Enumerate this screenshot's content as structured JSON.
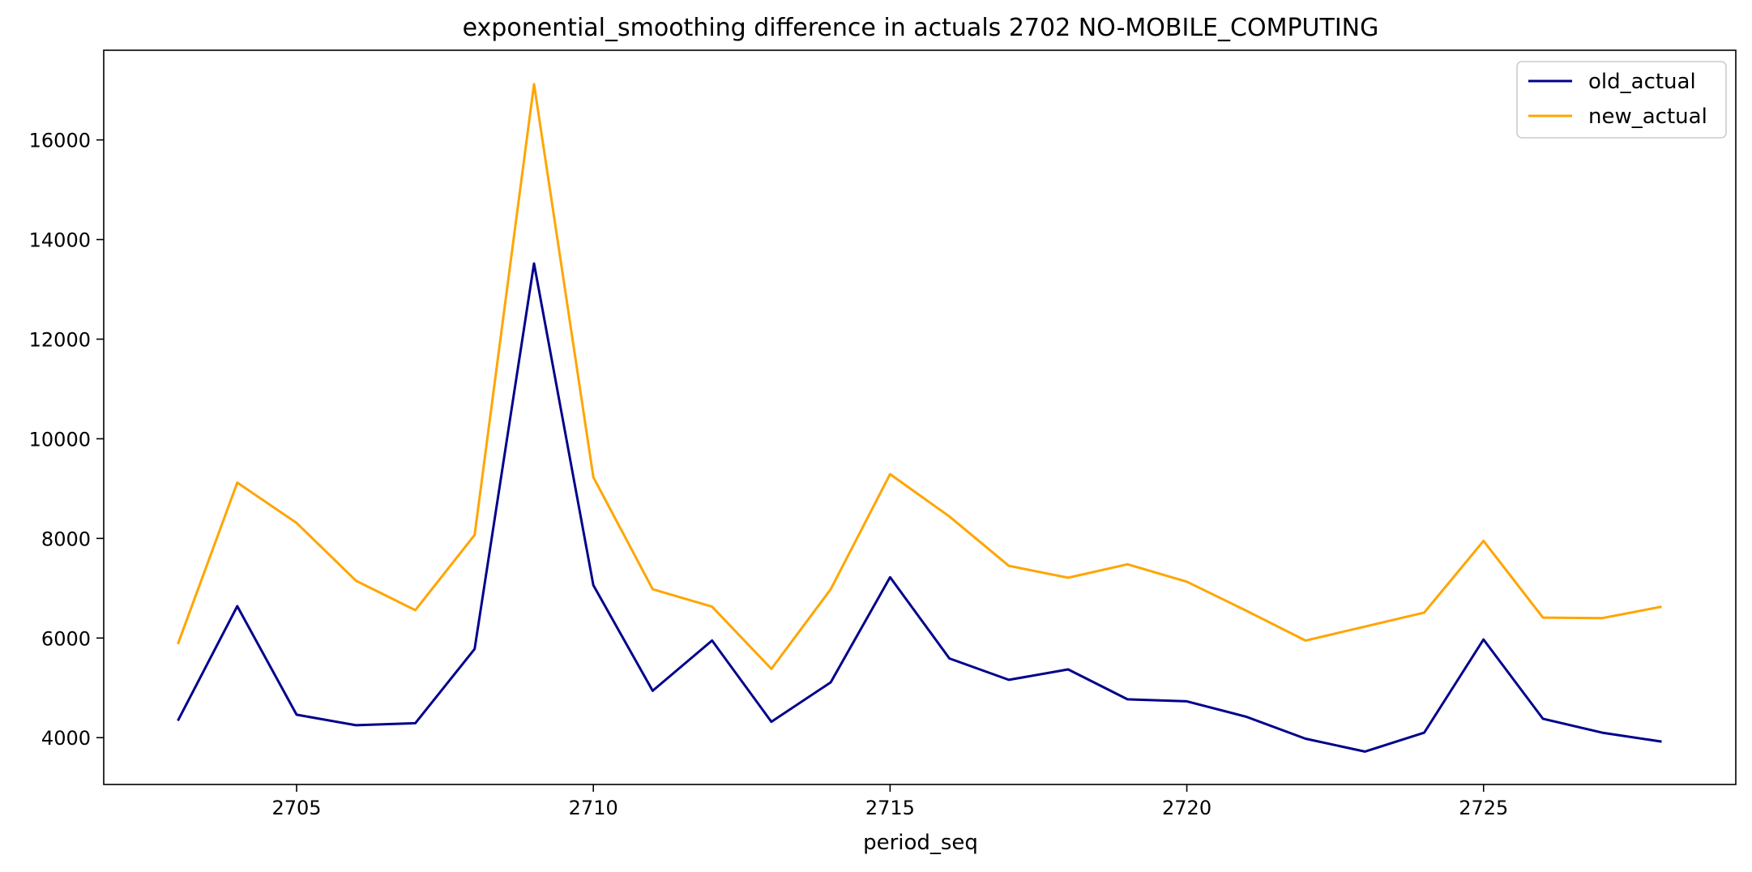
{
  "chart_data": {
    "type": "line",
    "title": "exponential_smoothing difference in actuals 2702 NO-MOBILE_COMPUTING",
    "xlabel": "period_seq",
    "ylabel": "",
    "x": [
      2703,
      2704,
      2705,
      2706,
      2707,
      2708,
      2709,
      2710,
      2711,
      2712,
      2713,
      2714,
      2715,
      2716,
      2717,
      2718,
      2719,
      2720,
      2721,
      2722,
      2723,
      2724,
      2725,
      2726,
      2727,
      2728
    ],
    "series": [
      {
        "name": "old_actual",
        "color": "#00008b",
        "values": [
          4340,
          6640,
          4460,
          4250,
          4290,
          5780,
          13520,
          7060,
          4940,
          5950,
          4320,
          5110,
          7220,
          5590,
          5160,
          5370,
          4770,
          4730,
          4420,
          3980,
          3720,
          4100,
          5970,
          4380,
          4100,
          3920
        ]
      },
      {
        "name": "new_actual",
        "color": "#ffa500",
        "values": [
          5880,
          9120,
          8310,
          7150,
          6560,
          8070,
          17120,
          9230,
          6980,
          6630,
          5380,
          6980,
          9290,
          8440,
          7450,
          7210,
          7480,
          7130,
          6550,
          5950,
          6230,
          6510,
          7950,
          6410,
          6400,
          6630
        ]
      }
    ],
    "xlim": [
      2701.75,
      2729.25
    ],
    "ylim": [
      3060,
      17800
    ],
    "xticks": [
      2705,
      2710,
      2715,
      2720,
      2725
    ],
    "yticks": [
      4000,
      6000,
      8000,
      10000,
      12000,
      14000,
      16000
    ],
    "grid": false,
    "legend_position": "top-right"
  }
}
